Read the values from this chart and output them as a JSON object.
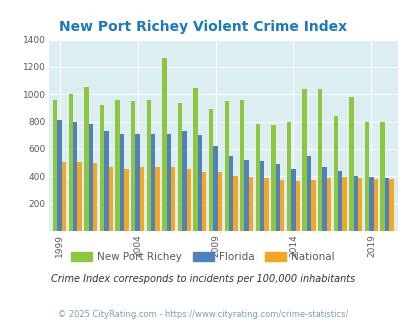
{
  "title": "New Port Richey Violent Crime Index",
  "years": [
    1999,
    2000,
    2001,
    2002,
    2003,
    2004,
    2005,
    2006,
    2007,
    2008,
    2009,
    2010,
    2011,
    2012,
    2013,
    2014,
    2015,
    2016,
    2017,
    2018,
    2019,
    2020
  ],
  "new_port_richey": [
    960,
    1005,
    1055,
    920,
    960,
    950,
    960,
    1265,
    935,
    1045,
    895,
    950,
    960,
    780,
    775,
    800,
    1040,
    1040,
    840,
    980,
    800,
    795
  ],
  "florida": [
    810,
    800,
    780,
    730,
    710,
    710,
    710,
    710,
    730,
    700,
    620,
    545,
    520,
    510,
    490,
    455,
    545,
    465,
    440,
    405,
    395,
    390
  ],
  "national": [
    505,
    505,
    495,
    470,
    450,
    465,
    465,
    470,
    450,
    430,
    430,
    405,
    395,
    390,
    375,
    365,
    370,
    390,
    395,
    385,
    380,
    380
  ],
  "colors": {
    "new_port_richey": "#8dc63f",
    "florida": "#4f81bd",
    "national": "#f5a623"
  },
  "ylim": [
    0,
    1400
  ],
  "yticks": [
    0,
    200,
    400,
    600,
    800,
    1000,
    1200,
    1400
  ],
  "xtick_labels": [
    "1999",
    "2004",
    "2009",
    "2014",
    "2019"
  ],
  "xtick_positions": [
    1999,
    2004,
    2009,
    2014,
    2019
  ],
  "plot_bg": "#ddeef2",
  "title_color": "#1a7abf",
  "axis_color": "#5a5a5a",
  "legend_labels": [
    "New Port Richey",
    "Florida",
    "National"
  ],
  "footnote1": "Crime Index corresponds to incidents per 100,000 inhabitants",
  "footnote2": "© 2025 CityRating.com - https://www.cityrating.com/crime-statistics/"
}
